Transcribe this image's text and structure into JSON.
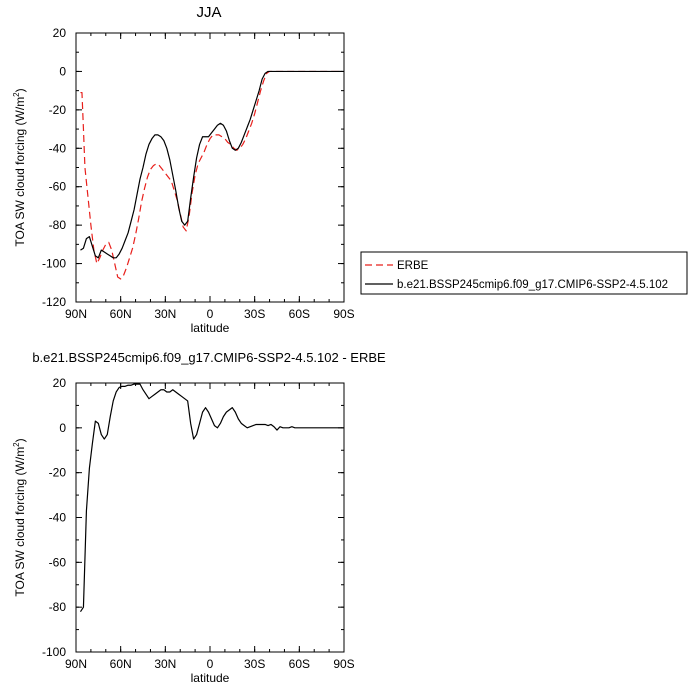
{
  "figure": {
    "title_top": "JJA",
    "title_bottom": "b.e21.BSSP245cmip6.f09_g17.CMIP6-SSP2-4.5.102 - ERBE"
  },
  "chart_data": [
    {
      "type": "line",
      "title": "JJA",
      "xlabel": "latitude",
      "ylabel": "TOA SW cloud forcing (W/m²)",
      "ylabel_main": "TOA SW cloud forcing (W/m",
      "ylabel_sup": "2",
      "ylabel_tail": ")",
      "xlim": [
        90,
        -90
      ],
      "ylim": [
        -120,
        20
      ],
      "xticks": [
        90,
        60,
        30,
        0,
        -30,
        -60,
        -90
      ],
      "xtick_labels": [
        "90N",
        "60N",
        "30N",
        "0",
        "30S",
        "60S",
        "90S"
      ],
      "yticks": [
        -120,
        -100,
        -80,
        -60,
        -40,
        -20,
        0,
        20
      ],
      "ytick_labels": [
        "-120",
        "-100",
        "-80",
        "-60",
        "-40",
        "-20",
        "0",
        "20"
      ],
      "grid": false,
      "legend_position": "right",
      "series": [
        {
          "name": "ERBE",
          "color": "#e8201c",
          "dash": "dashed",
          "x": [
            87,
            86,
            85,
            84,
            82,
            80,
            78,
            76,
            74,
            72,
            70,
            68,
            66,
            64,
            62,
            60,
            58,
            56,
            54,
            52,
            50,
            48,
            46,
            44,
            42,
            40,
            38,
            36,
            34,
            32,
            30,
            28,
            26,
            24,
            22,
            20,
            18,
            16,
            14,
            12,
            10,
            8,
            6,
            4,
            2,
            0,
            -2,
            -4,
            -6,
            -8,
            -10,
            -12,
            -14,
            -16,
            -18,
            -20,
            -22,
            -24,
            -26,
            -28,
            -30,
            -32,
            -34,
            -36,
            -38,
            -40,
            -42,
            -44,
            -46,
            -48,
            -50,
            -52,
            -54,
            -56,
            -58,
            -60,
            -62,
            -64,
            -66,
            -68,
            -70,
            -72,
            -74,
            -76,
            -78,
            -80,
            -82,
            -84,
            -86,
            -88
          ],
          "y": [
            -11,
            -11,
            -30,
            -50,
            -65,
            -80,
            -93,
            -100,
            -97,
            -93,
            -90,
            -89,
            -93,
            -100,
            -107,
            -108,
            -106,
            -102,
            -97,
            -92,
            -85,
            -77,
            -68,
            -61,
            -55,
            -51,
            -49,
            -48,
            -49,
            -51,
            -53,
            -55,
            -57,
            -62,
            -67,
            -74,
            -81,
            -83,
            -75,
            -63,
            -54,
            -48,
            -45,
            -42,
            -38,
            -35,
            -33,
            -33,
            -33,
            -34,
            -35,
            -37,
            -38,
            -40,
            -41,
            -40,
            -38,
            -35,
            -31,
            -27,
            -22,
            -16,
            -10,
            -5,
            -1,
            0,
            0,
            0,
            0,
            0,
            0,
            0,
            0,
            0,
            0,
            0,
            0,
            0,
            0,
            0,
            0,
            0,
            0,
            0,
            0,
            0,
            0,
            0,
            0,
            0
          ]
        },
        {
          "name": "b.e21.BSSP245cmip6.f09_g17.CMIP6-SSP2-4.5.102",
          "color": "#000000",
          "dash": "solid",
          "x": [
            87,
            85,
            83,
            81,
            79,
            77,
            75,
            73,
            71,
            69,
            67,
            65,
            63,
            61,
            59,
            57,
            55,
            53,
            51,
            49,
            47,
            45,
            43,
            41,
            39,
            37,
            35,
            33,
            31,
            29,
            27,
            25,
            23,
            21,
            19,
            17,
            15,
            13,
            11,
            9,
            7,
            5,
            3,
            1,
            -1,
            -3,
            -5,
            -7,
            -9,
            -11,
            -13,
            -15,
            -17,
            -19,
            -21,
            -23,
            -25,
            -27,
            -29,
            -31,
            -33,
            -35,
            -37,
            -39,
            -41,
            -43,
            -45,
            -47,
            -49,
            -51,
            -53,
            -55,
            -57,
            -59,
            -61,
            -63,
            -65,
            -67,
            -69,
            -71,
            -73,
            -75,
            -77,
            -79,
            -81,
            -83,
            -85,
            -87,
            -89
          ],
          "y": [
            -93,
            -92,
            -87,
            -86,
            -91,
            -96,
            -97,
            -93,
            -94,
            -95,
            -96,
            -97,
            -97,
            -95,
            -92,
            -88,
            -84,
            -78,
            -72,
            -64,
            -56,
            -50,
            -43,
            -38,
            -35,
            -33,
            -33,
            -34,
            -36,
            -40,
            -46,
            -54,
            -62,
            -71,
            -78,
            -80,
            -78,
            -66,
            -55,
            -45,
            -38,
            -34,
            -34,
            -34,
            -32,
            -30,
            -28,
            -27,
            -28,
            -31,
            -36,
            -40,
            -41,
            -40,
            -37,
            -33,
            -29,
            -25,
            -20,
            -15,
            -10,
            -4,
            -1,
            0,
            0,
            0,
            0,
            0,
            0,
            0,
            0,
            0,
            0,
            0,
            0,
            0,
            0,
            0,
            0,
            0,
            0,
            0,
            0,
            0,
            0,
            0,
            0,
            0,
            0
          ]
        }
      ]
    },
    {
      "type": "line",
      "title": "b.e21.BSSP245cmip6.f09_g17.CMIP6-SSP2-4.5.102 - ERBE",
      "xlabel": "latitude",
      "ylabel": "TOA SW cloud forcing (W/m²)",
      "ylabel_main": "TOA SW cloud forcing (W/m",
      "ylabel_sup": "2",
      "ylabel_tail": ")",
      "xlim": [
        90,
        -90
      ],
      "ylim": [
        -100,
        20
      ],
      "xticks": [
        90,
        60,
        30,
        0,
        -30,
        -60,
        -90
      ],
      "xtick_labels": [
        "90N",
        "60N",
        "30N",
        "0",
        "30S",
        "60S",
        "90S"
      ],
      "yticks": [
        -100,
        -80,
        -60,
        -40,
        -20,
        0,
        20
      ],
      "ytick_labels": [
        "-100",
        "-80",
        "-60",
        "-40",
        "-20",
        "0",
        "20"
      ],
      "grid": false,
      "series": [
        {
          "color": "#000000",
          "dash": "solid",
          "x": [
            87,
            85,
            83,
            81,
            79,
            77,
            75,
            73,
            71,
            69,
            67,
            65,
            63,
            61,
            59,
            57,
            55,
            53,
            51,
            49,
            47,
            45,
            43,
            41,
            39,
            37,
            35,
            33,
            31,
            29,
            27,
            25,
            23,
            21,
            19,
            17,
            15,
            13,
            11,
            9,
            7,
            5,
            3,
            1,
            -1,
            -3,
            -5,
            -7,
            -9,
            -11,
            -13,
            -15,
            -17,
            -19,
            -21,
            -23,
            -25,
            -27,
            -29,
            -31,
            -33,
            -35,
            -37,
            -39,
            -41,
            -43,
            -45,
            -47,
            -49,
            -51,
            -53,
            -55,
            -57,
            -59,
            -61,
            -63,
            -65,
            -67,
            -69,
            -71,
            -73,
            -75,
            -77,
            -79,
            -81,
            -83,
            -85,
            -87,
            -89
          ],
          "y": [
            -82,
            -80,
            -37,
            -18,
            -7,
            3,
            2,
            -3,
            -5,
            -3,
            5,
            12,
            16,
            18,
            18.5,
            18.5,
            19,
            19,
            19.5,
            19.5,
            19.5,
            17,
            15,
            13,
            14,
            15,
            16,
            17,
            17,
            16,
            16,
            17,
            16,
            15,
            14,
            13,
            12,
            2,
            -5,
            -3,
            2,
            7,
            9,
            7,
            4,
            1,
            0,
            2,
            5,
            7,
            8,
            9,
            7,
            4,
            2,
            1,
            0,
            0.5,
            1,
            1.5,
            1.5,
            1.5,
            1.5,
            1,
            1.5,
            0.5,
            -1,
            0.5,
            0,
            0,
            0,
            0.5,
            0,
            0,
            0,
            0,
            0,
            0,
            0,
            0,
            0,
            0,
            0,
            0,
            0,
            0,
            0,
            0,
            0
          ]
        }
      ]
    }
  ]
}
